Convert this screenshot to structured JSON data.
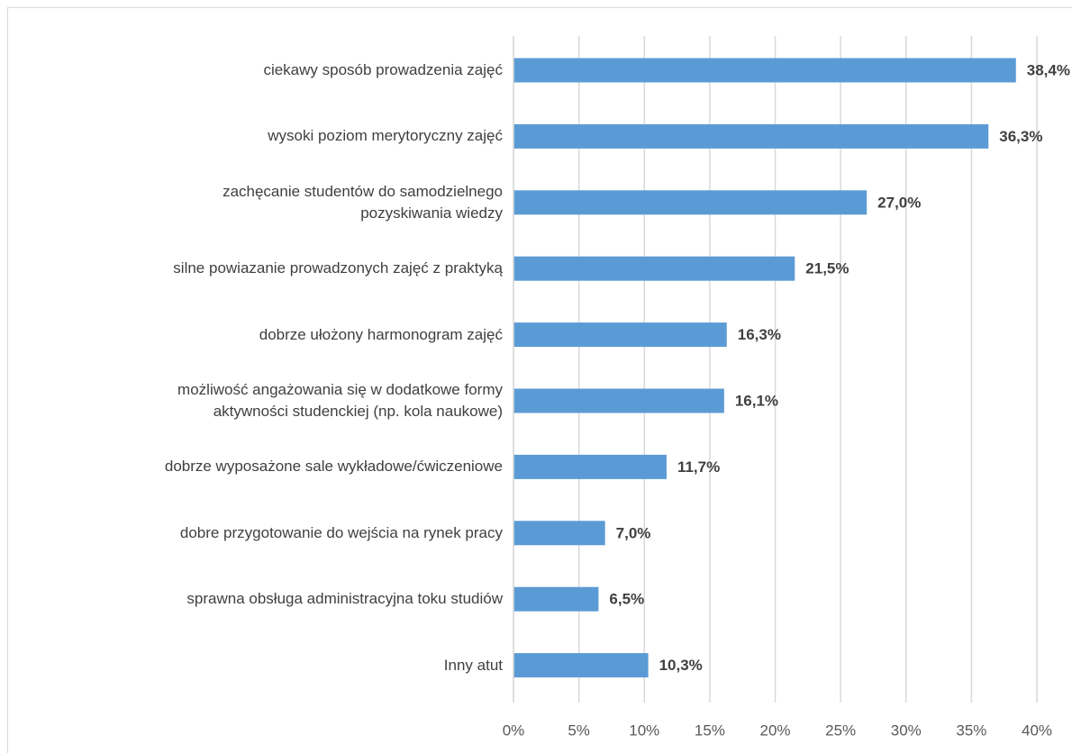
{
  "chart_data": {
    "type": "bar",
    "orientation": "horizontal",
    "categories": [
      "ciekawy sposób prowadzenia zajęć",
      "wysoki poziom merytoryczny zajęć",
      "zachęcanie studentów do samodzielnego\npozyskiwania wiedzy",
      "silne powiazanie prowadzonych zajęć z praktyką",
      "dobrze ułożony harmonogram zajęć",
      "możliwość angażowania się w dodatkowe formy\naktywności studenckiej (np. kola naukowe)",
      "dobrze wyposażone sale wykładowe/ćwiczeniowe",
      "dobre przygotowanie do wejścia na rynek pracy",
      "sprawna obsługa administracyjna toku studiów",
      "Inny atut"
    ],
    "values": [
      38.4,
      36.3,
      27.0,
      21.5,
      16.3,
      16.1,
      11.7,
      7.0,
      6.5,
      10.3
    ],
    "value_labels": [
      "38,4%",
      "36,3%",
      "27,0%",
      "21,5%",
      "16,3%",
      "16,1%",
      "11,7%",
      "7,0%",
      "6,5%",
      "10,3%"
    ],
    "color": "#5b9bd5",
    "xlim": [
      0,
      40
    ],
    "xticks": [
      {
        "value": 0,
        "label": "0%"
      },
      {
        "value": 5,
        "label": "5%"
      },
      {
        "value": 10,
        "label": "10%"
      },
      {
        "value": 15,
        "label": "15%"
      },
      {
        "value": 20,
        "label": "20%"
      },
      {
        "value": 25,
        "label": "25%"
      },
      {
        "value": 30,
        "label": "30%"
      },
      {
        "value": 35,
        "label": "35%"
      },
      {
        "value": 40,
        "label": "40%"
      }
    ],
    "grid": true
  }
}
